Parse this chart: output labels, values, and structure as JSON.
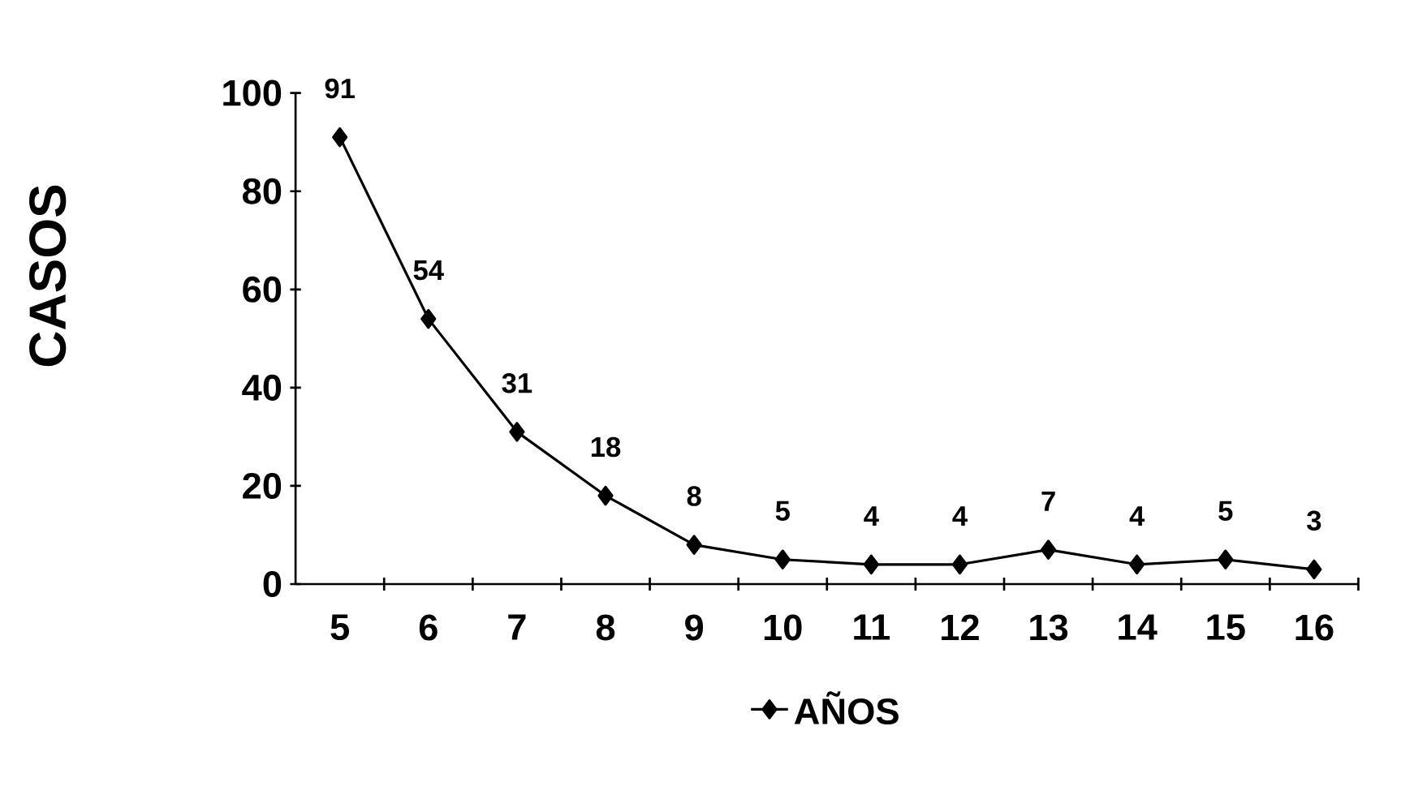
{
  "chart_data": {
    "type": "line",
    "ylabel": "CASOS",
    "categories": [
      "5",
      "6",
      "7",
      "8",
      "9",
      "10",
      "11",
      "12",
      "13",
      "14",
      "15",
      "16"
    ],
    "series": [
      {
        "name": "AÑOS",
        "color": "#000000",
        "values": [
          91,
          54,
          31,
          18,
          8,
          5,
          4,
          4,
          7,
          4,
          5,
          3
        ]
      }
    ],
    "ylim": [
      0,
      100
    ],
    "yticks": [
      0,
      20,
      40,
      60,
      80,
      100
    ],
    "data_labels": true,
    "marker": "diamond",
    "line_style": "solid",
    "grid": false,
    "legend": "bottom"
  }
}
